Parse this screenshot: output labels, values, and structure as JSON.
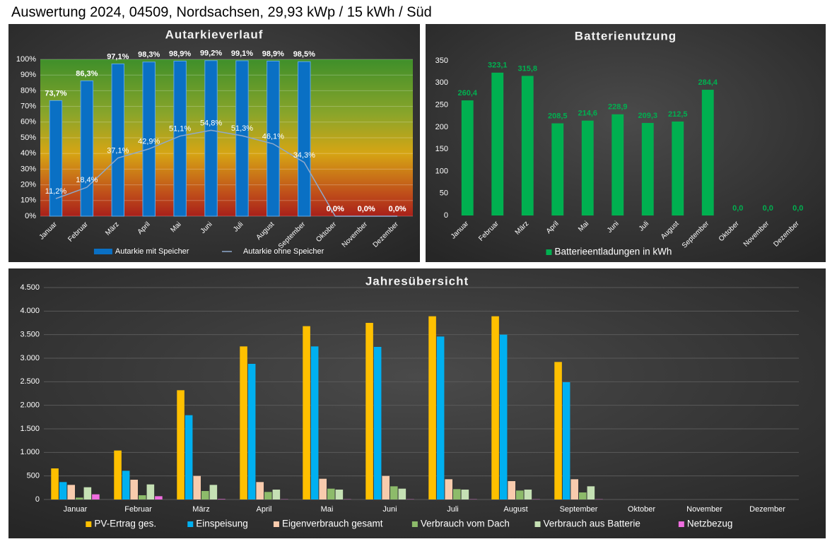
{
  "title": "Auswertung 2024, 04509, Nordsachsen, 29,93 kWp / 15 kWh / Süd",
  "chart_data": [
    {
      "type": "bar",
      "title": "Autarkieverlauf",
      "categories": [
        "Januar",
        "Februar",
        "März",
        "April",
        "Mai",
        "Juni",
        "Juli",
        "August",
        "September",
        "Oktober",
        "November",
        "Dezember"
      ],
      "series": [
        {
          "name": "Autarkie mit Speicher",
          "type": "bar",
          "color": "#0a70c4",
          "values": [
            73.7,
            86.3,
            97.1,
            98.3,
            98.9,
            99.2,
            99.1,
            98.9,
            98.5,
            0,
            0,
            0
          ],
          "value_labels": [
            "73,7%",
            "86,3%",
            "97,1%",
            "98,3%",
            "98,9%",
            "99,2%",
            "99,1%",
            "98,9%",
            "98,5%",
            "0,0%",
            "0,0%",
            "0,0%"
          ]
        },
        {
          "name": "Autarkie ohne Speicher",
          "type": "line",
          "color": "#8fa9cc",
          "values": [
            11.2,
            18.4,
            37.1,
            42.9,
            51.1,
            54.8,
            51.3,
            46.1,
            34.3,
            0,
            0,
            0
          ],
          "value_labels": [
            "11,2%",
            "18,4%",
            "37,1%",
            "42,9%",
            "51,1%",
            "54,8%",
            "51,3%",
            "46,1%",
            "34,3%",
            "0,0%",
            "0,0%",
            "0,0%"
          ]
        }
      ],
      "ylim": [
        0,
        100
      ],
      "yticks": [
        {
          "value": 0,
          "label": "0%"
        },
        {
          "value": 10,
          "label": "10%"
        },
        {
          "value": 20,
          "label": "20%"
        },
        {
          "value": 30,
          "label": "30%"
        },
        {
          "value": 40,
          "label": "40%"
        },
        {
          "value": 50,
          "label": "50%"
        },
        {
          "value": 60,
          "label": "60%"
        },
        {
          "value": 70,
          "label": "70%"
        },
        {
          "value": 80,
          "label": "80%"
        },
        {
          "value": 90,
          "label": "90%"
        },
        {
          "value": 100,
          "label": "100%"
        }
      ],
      "grid": true,
      "legend": "bottom"
    },
    {
      "type": "bar",
      "title": "Batterienutzung",
      "categories": [
        "Januar",
        "Februar",
        "März",
        "April",
        "Mai",
        "Juni",
        "Juli",
        "August",
        "September",
        "Oktober",
        "November",
        "Dezember"
      ],
      "series": [
        {
          "name": "Batterieentladungen in kWh",
          "type": "bar",
          "color": "#00b050",
          "values": [
            260.4,
            323.1,
            315.8,
            208.5,
            214.6,
            228.9,
            209.3,
            212.5,
            284.4,
            0,
            0,
            0
          ],
          "value_labels": [
            "260,4",
            "323,1",
            "315,8",
            "208,5",
            "214,6",
            "228,9",
            "209,3",
            "212,5",
            "284,4",
            "0,0",
            "0,0",
            "0,0"
          ]
        }
      ],
      "ylim": [
        0,
        350
      ],
      "yticks": [
        0,
        50,
        100,
        150,
        200,
        250,
        300,
        350
      ],
      "grid": false,
      "legend": "bottom"
    },
    {
      "type": "bar",
      "title": "Jahresübersicht",
      "categories": [
        "Januar",
        "Februar",
        "März",
        "April",
        "Mai",
        "Juni",
        "Juli",
        "August",
        "September",
        "Oktober",
        "November",
        "Dezember"
      ],
      "series": [
        {
          "name": "PV-Ertrag ges.",
          "type": "bar",
          "color": "#ffc000",
          "values": [
            660,
            1040,
            2320,
            3250,
            3680,
            3750,
            3890,
            3890,
            2920,
            0,
            0,
            0
          ]
        },
        {
          "name": "Einspeisung",
          "type": "bar",
          "color": "#00b0f0",
          "values": [
            370,
            610,
            1790,
            2880,
            3250,
            3240,
            3460,
            3500,
            2490,
            0,
            0,
            0
          ]
        },
        {
          "name": "Eigenverbrauch gesamt",
          "type": "bar",
          "color": "#f8cbad",
          "values": [
            310,
            420,
            500,
            370,
            440,
            500,
            430,
            390,
            430,
            0,
            0,
            0
          ]
        },
        {
          "name": "Verbrauch vom Dach",
          "type": "bar",
          "color": "#8dbb6a",
          "values": [
            40,
            90,
            180,
            160,
            230,
            280,
            220,
            190,
            150,
            0,
            0,
            0
          ]
        },
        {
          "name": "Verbrauch aus Batterie",
          "type": "bar",
          "color": "#c5e0b4",
          "values": [
            260,
            320,
            310,
            210,
            210,
            230,
            210,
            210,
            280,
            0,
            0,
            0
          ]
        },
        {
          "name": "Netzbezug",
          "type": "bar",
          "color": "#f06ee0",
          "values": [
            110,
            70,
            10,
            5,
            5,
            5,
            5,
            5,
            5,
            0,
            0,
            0
          ]
        }
      ],
      "ylim": [
        0,
        4500
      ],
      "yticks": [
        0,
        {
          "value": 500,
          "label": "500"
        },
        {
          "value": 1000,
          "label": "1.000"
        },
        {
          "value": 1500,
          "label": "1.500"
        },
        {
          "value": 2000,
          "label": "2.000"
        },
        {
          "value": 2500,
          "label": "2.500"
        },
        {
          "value": 3000,
          "label": "3.000"
        },
        {
          "value": 3500,
          "label": "3.500"
        },
        {
          "value": 4000,
          "label": "4.000"
        },
        {
          "value": 4500,
          "label": "4.500"
        }
      ],
      "grid": true,
      "legend": "bottom"
    }
  ]
}
